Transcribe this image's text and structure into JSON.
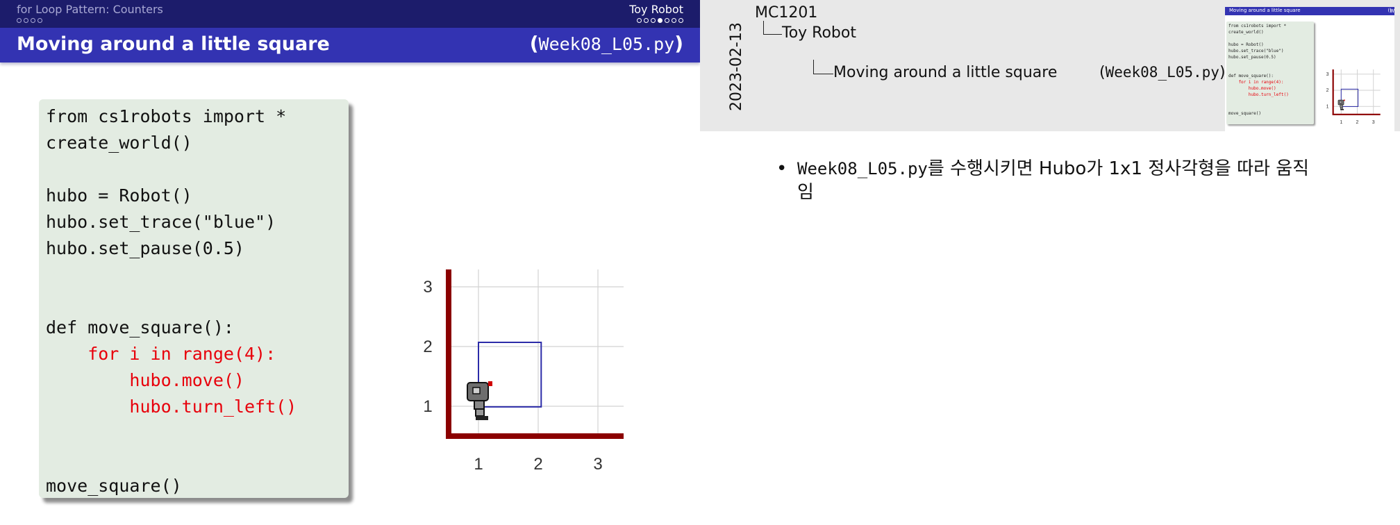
{
  "slide": {
    "section_title": "for Loop Pattern: Counters",
    "subsection_title": "Toy Robot",
    "frame_title": "Moving around a little square",
    "file_label": "Week08_L05.py",
    "code_lines": [
      {
        "text": "from cs1robots import *",
        "highlight": false
      },
      {
        "text": "create_world()",
        "highlight": false
      },
      {
        "text": "",
        "highlight": false
      },
      {
        "text": "hubo = Robot()",
        "highlight": false
      },
      {
        "text": "hubo.set_trace(\"blue\")",
        "highlight": false
      },
      {
        "text": "hubo.set_pause(0.5)",
        "highlight": false
      },
      {
        "text": "",
        "highlight": false
      },
      {
        "text": "",
        "highlight": false
      },
      {
        "text": "def move_square():",
        "highlight": false
      },
      {
        "text": "    for i in range(4):",
        "highlight": true
      },
      {
        "text": "        hubo.move()",
        "highlight": true
      },
      {
        "text": "        hubo.turn_left()",
        "highlight": true
      },
      {
        "text": "",
        "highlight": false
      },
      {
        "text": "",
        "highlight": false
      },
      {
        "text": "move_square()",
        "highlight": false
      }
    ],
    "world": {
      "x_ticks": [
        "1",
        "2",
        "3"
      ],
      "y_ticks": [
        "1",
        "2",
        "3"
      ],
      "trace_color": "#2b2ba8",
      "wall_color": "#8b0000"
    }
  },
  "notes": {
    "date": "2023-02-13",
    "course": "MC1201",
    "section": "Toy Robot",
    "frame_title": "Moving around a little square",
    "file_label": "Week08_L05.py",
    "bullet": {
      "file": "Week08_L05.py",
      "text": "를 수행시키면 Hubo가 1x1 정사각형을 따라 움직임"
    }
  },
  "colors": {
    "header_dark": "#1c1c6b",
    "header_title": "#3333b2",
    "code_bg": "#e3ece2",
    "highlight_red": "#e8000b"
  }
}
